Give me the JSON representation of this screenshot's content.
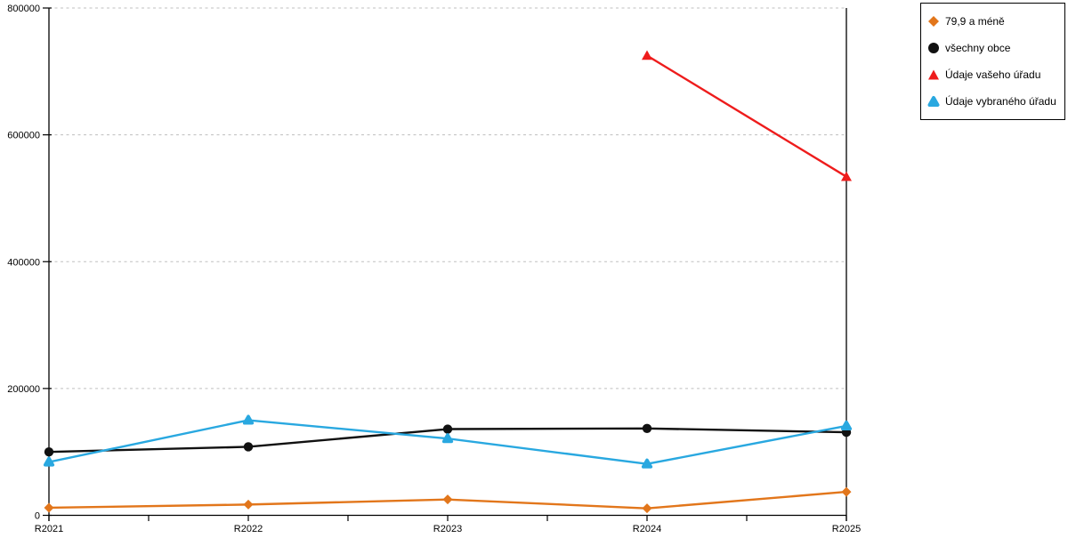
{
  "chart_data": {
    "type": "line",
    "categories": [
      "R2021",
      "R2022",
      "R2023",
      "R2024",
      "R2025"
    ],
    "series": [
      {
        "name": "79,9 a méně",
        "marker": "diamond",
        "color": "#E2761B",
        "values": [
          12000,
          17000,
          25000,
          11000,
          37000
        ]
      },
      {
        "name": "všechny obce",
        "marker": "circle",
        "color": "#111111",
        "values": [
          100000,
          108000,
          136000,
          137000,
          131000
        ]
      },
      {
        "name": "Údaje vašeho úřadu",
        "marker": "triangle",
        "color": "#EE1C1C",
        "values": [
          null,
          null,
          null,
          725000,
          534000
        ]
      },
      {
        "name": "Údaje vybraného úřadu",
        "marker": "triangle-rounded",
        "color": "#29A8E0",
        "values": [
          84000,
          150000,
          121000,
          81000,
          141000
        ]
      }
    ],
    "title": "",
    "xlabel": "",
    "ylabel": "",
    "ylim": [
      0,
      800000
    ],
    "y_ticks": [
      0,
      200000,
      400000,
      600000,
      800000
    ],
    "y_tick_labels": [
      "0",
      "200000",
      "400000",
      "600000",
      "800000"
    ],
    "grid": "horizontal-dashed",
    "grid_color": "#BFBFBF",
    "axis_color": "#000000",
    "legend_position": "top-right"
  },
  "legend": {
    "border_color": "#000000",
    "background": "#FFFFFF"
  }
}
